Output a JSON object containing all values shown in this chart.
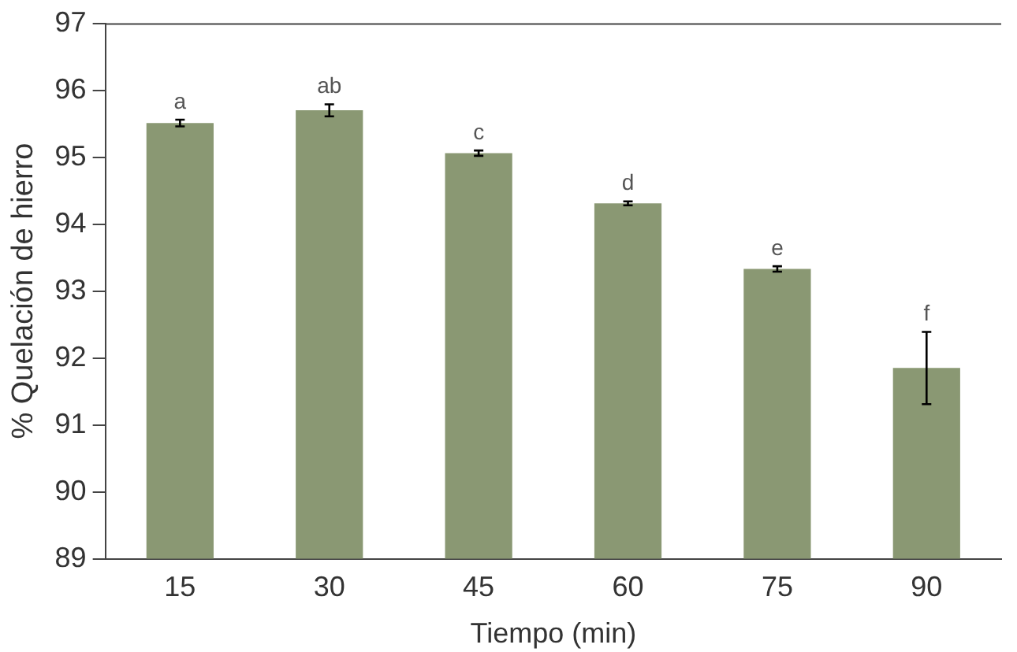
{
  "chart_data": {
    "type": "bar",
    "xlabel": "Tiempo (min)",
    "ylabel": "% Quelación de hierro",
    "categories": [
      "15",
      "30",
      "45",
      "60",
      "75",
      "90"
    ],
    "values": [
      95.51,
      95.7,
      95.06,
      94.31,
      93.33,
      91.85
    ],
    "errors": [
      0.05,
      0.09,
      0.04,
      0.03,
      0.04,
      0.54
    ],
    "color": "#8a9873",
    "ylim": [
      89,
      97
    ],
    "yticks": [
      89,
      90,
      91,
      92,
      93,
      94,
      95,
      96,
      97
    ],
    "grid": false,
    "annotations": [
      {
        "text": "a",
        "x": "15",
        "y": 95.56
      },
      {
        "text": "ab",
        "x": "30",
        "y": 95.79
      },
      {
        "text": "c",
        "x": "45",
        "y": 95.1
      },
      {
        "text": "d",
        "x": "60",
        "y": 94.34
      },
      {
        "text": "e",
        "x": "75",
        "y": 93.37
      },
      {
        "text": "f",
        "x": "90",
        "y": 92.39
      }
    ]
  }
}
